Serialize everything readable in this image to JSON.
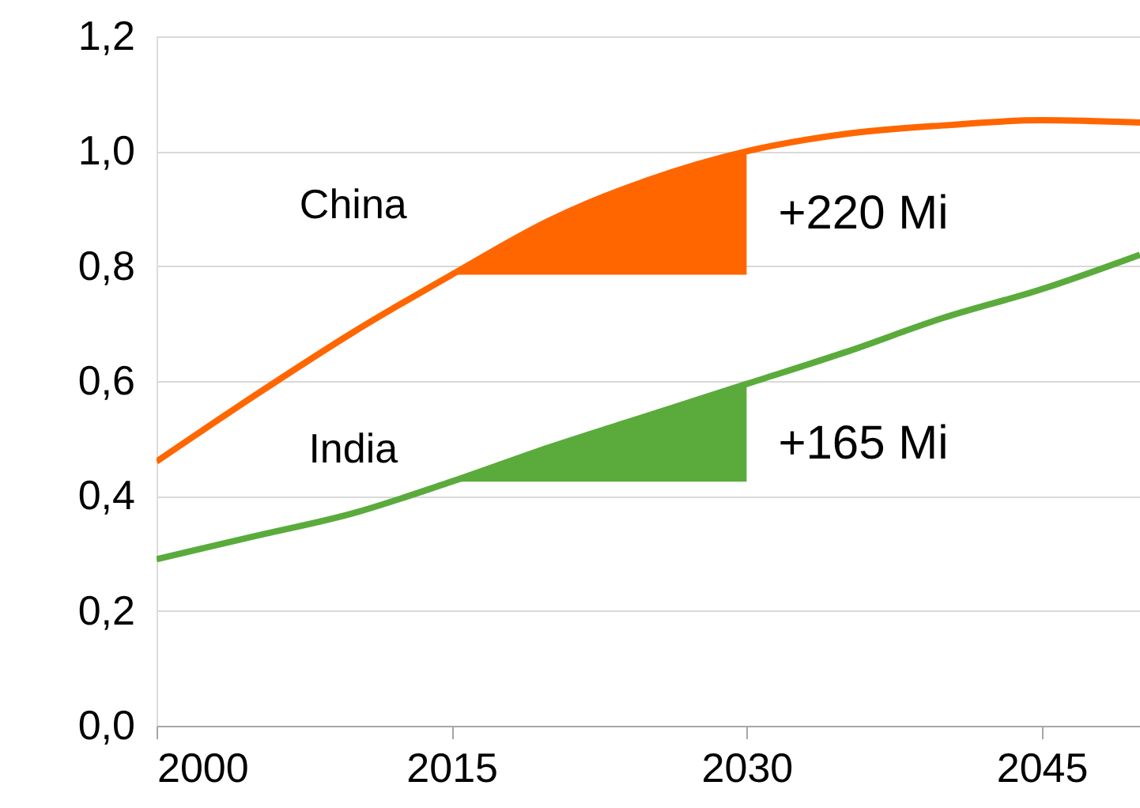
{
  "chart_data": {
    "type": "line",
    "x": [
      2000,
      2005,
      2010,
      2015,
      2020,
      2025,
      2030,
      2035,
      2040,
      2045,
      2050
    ],
    "series": [
      {
        "name": "China",
        "color": "#ff6600",
        "values": [
          0.46,
          0.575,
          0.685,
          0.785,
          0.88,
          0.95,
          1.0,
          1.03,
          1.045,
          1.054,
          1.05
        ],
        "lower": [
          null,
          null,
          null,
          0.785,
          0.785,
          0.785,
          0.785,
          null,
          null,
          null,
          null
        ],
        "upper": [
          null,
          null,
          null,
          0.785,
          0.88,
          0.95,
          1.0,
          null,
          null,
          null,
          null
        ]
      },
      {
        "name": "India",
        "color": "#5aab3c",
        "values": [
          0.29,
          0.33,
          0.37,
          0.425,
          0.485,
          0.54,
          0.595,
          0.65,
          0.71,
          0.76,
          0.82
        ],
        "lower": [
          null,
          null,
          null,
          0.425,
          0.425,
          0.425,
          0.425,
          null,
          null,
          null,
          null
        ],
        "upper": [
          null,
          null,
          null,
          0.425,
          0.485,
          0.54,
          0.595,
          null,
          null,
          null,
          null
        ]
      }
    ],
    "annotations": [
      {
        "text": "+220 Mi",
        "x": 2030,
        "y": 0.89
      },
      {
        "text": "+165 Mi",
        "x": 2030,
        "y": 0.49
      }
    ],
    "xlim": [
      2000,
      2050
    ],
    "xticks": [
      2000,
      2015,
      2030,
      2045
    ],
    "ylim": [
      0,
      1.2
    ],
    "yticks": [
      {
        "value": 0,
        "label": "0,0"
      },
      {
        "value": 0.2,
        "label": "0,2"
      },
      {
        "value": 0.4,
        "label": "0,4"
      },
      {
        "value": 0.6,
        "label": "0,6"
      },
      {
        "value": 0.8,
        "label": "0,8"
      },
      {
        "value": 1.0,
        "label": "1,0"
      },
      {
        "value": 1.2,
        "label": "1,2"
      }
    ],
    "grid": "y",
    "marker": "none",
    "line_style": "solid"
  }
}
